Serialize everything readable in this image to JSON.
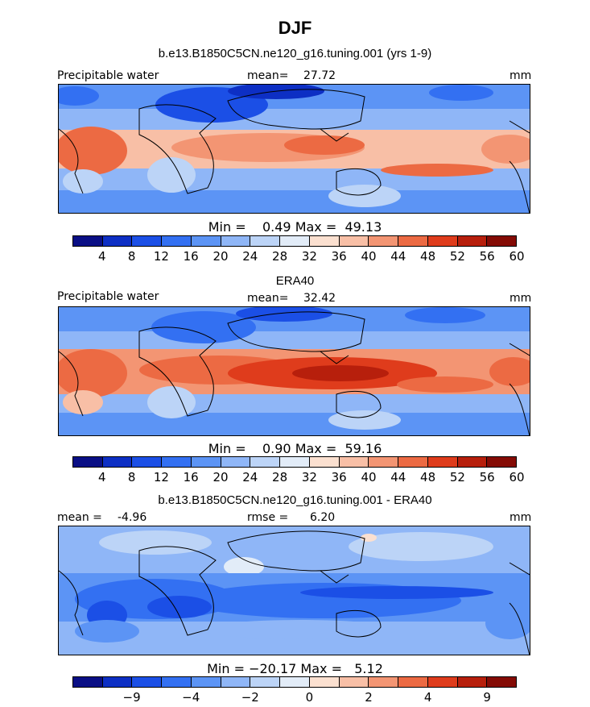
{
  "figure": {
    "season": "DJF"
  },
  "panels": [
    {
      "title": "b.e13.B1850C5CN.ne120_g16.tuning.001 (yrs 1-9)",
      "left_label": "Precipitable water",
      "mean_label": "mean=",
      "mean_value": "27.72",
      "units": "mm",
      "min_label": "Min =",
      "min_value": "0.49",
      "max_label": "Max =",
      "max_value": "49.13",
      "colorbar_ticks": [
        "4",
        "8",
        "12",
        "16",
        "20",
        "24",
        "28",
        "32",
        "36",
        "40",
        "44",
        "48",
        "52",
        "56",
        "60"
      ]
    },
    {
      "title": "ERA40",
      "left_label": "Precipitable water",
      "mean_label": "mean=",
      "mean_value": "32.42",
      "units": "mm",
      "min_label": "Min =",
      "min_value": "0.90",
      "max_label": "Max =",
      "max_value": "59.16",
      "colorbar_ticks": [
        "4",
        "8",
        "12",
        "16",
        "20",
        "24",
        "28",
        "32",
        "36",
        "40",
        "44",
        "48",
        "52",
        "56",
        "60"
      ]
    },
    {
      "title": "b.e13.B1850C5CN.ne120_g16.tuning.001 - ERA40",
      "left_label": "mean =",
      "mean_label": "rmse =",
      "left_value": "-4.96",
      "rmse_value": "6.20",
      "units": "mm",
      "min_label": "Min =",
      "min_value": "−20.17",
      "max_label": "Max =",
      "max_value": "5.12",
      "colorbar_ticks": [
        "−9",
        "−4",
        "−2",
        "0",
        "2",
        "4",
        "9"
      ]
    }
  ],
  "palette": [
    "#0a0f85",
    "#0d2fc4",
    "#1b4fe6",
    "#3370f2",
    "#5c94f5",
    "#8fb6f7",
    "#bcd4f7",
    "#e2ecf8",
    "#fbe0d0",
    "#f8bfa6",
    "#f39573",
    "#ec6a43",
    "#df3c1c",
    "#b71f0c",
    "#840b05"
  ],
  "chart_data": [
    {
      "type": "heatmap",
      "title": "b.e13.B1850C5CN.ne120_g16.tuning.001 (yrs 1-9)",
      "variable": "Precipitable water",
      "units": "mm",
      "mean": 27.72,
      "min": 0.49,
      "max": 49.13,
      "levels": [
        4,
        8,
        12,
        16,
        20,
        24,
        28,
        32,
        36,
        40,
        44,
        48,
        52,
        56,
        60
      ]
    },
    {
      "type": "heatmap",
      "title": "ERA40",
      "variable": "Precipitable water",
      "units": "mm",
      "mean": 32.42,
      "min": 0.9,
      "max": 59.16,
      "levels": [
        4,
        8,
        12,
        16,
        20,
        24,
        28,
        32,
        36,
        40,
        44,
        48,
        52,
        56,
        60
      ]
    },
    {
      "type": "heatmap",
      "title": "b.e13.B1850C5CN.ne120_g16.tuning.001 - ERA40",
      "units": "mm",
      "mean": -4.96,
      "rmse": 6.2,
      "min": -20.17,
      "max": 5.12,
      "levels": [
        -9,
        -4,
        -2,
        0,
        2,
        4,
        9
      ]
    }
  ]
}
